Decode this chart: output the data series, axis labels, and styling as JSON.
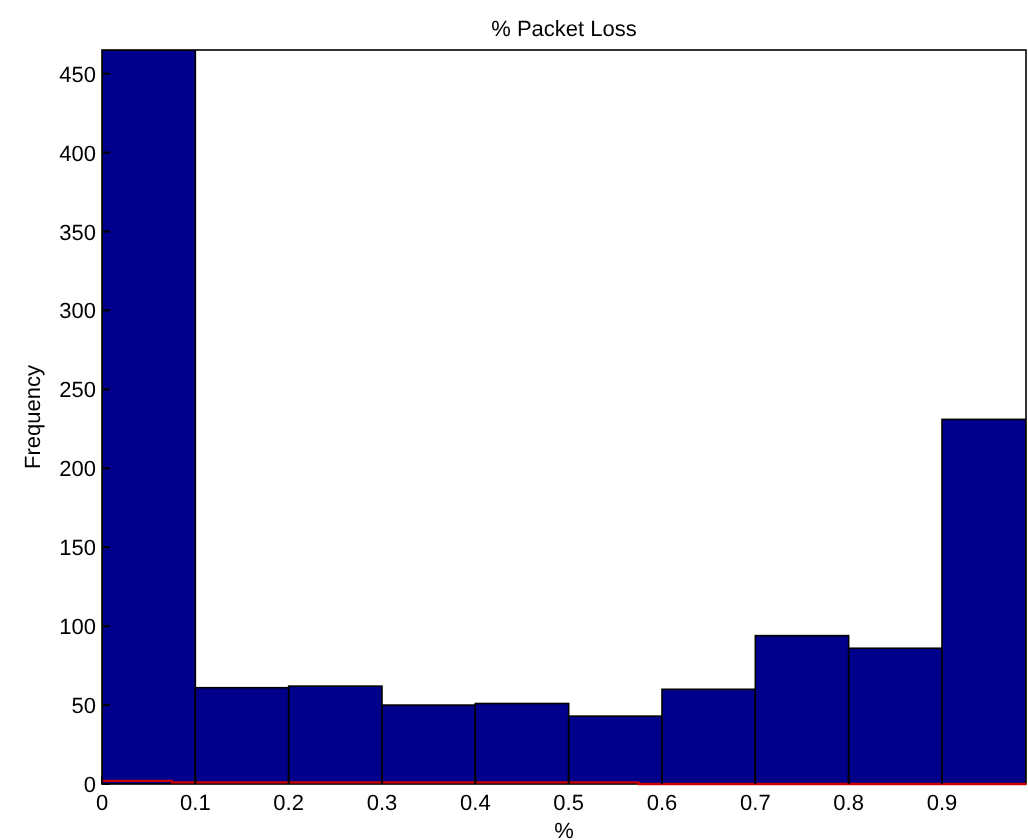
{
  "chart_data": {
    "type": "histogram",
    "title": "% Packet Loss",
    "xlabel": "%",
    "ylabel": "Frequency",
    "bins": [
      0,
      0.1,
      0.2,
      0.3,
      0.4,
      0.5,
      0.6,
      0.7,
      0.8,
      0.9,
      0.99
    ],
    "values": [
      465,
      61,
      62,
      50,
      51,
      43,
      60,
      94,
      86,
      231
    ],
    "color": "#00008b",
    "series": [
      {
        "type": "step",
        "color": "#cc0000",
        "x": [
          0,
          0.075,
          0.575,
          0.99
        ],
        "values": [
          2,
          1,
          0,
          0
        ]
      }
    ],
    "xlim": [
      0,
      0.99
    ],
    "ylim": [
      0,
      465
    ],
    "xticks": [
      0,
      0.1,
      0.2,
      0.3,
      0.4,
      0.5,
      0.6,
      0.7,
      0.8,
      0.9
    ],
    "yticks": [
      0,
      50,
      100,
      150,
      200,
      250,
      300,
      350,
      400,
      450
    ],
    "grid": false
  }
}
